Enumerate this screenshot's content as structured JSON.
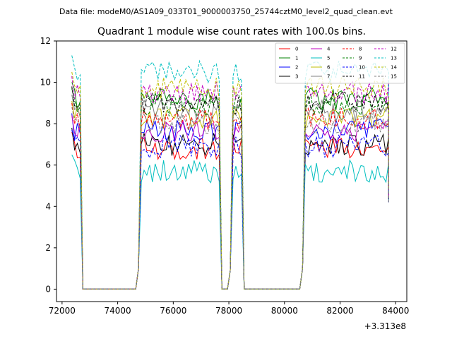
{
  "chart_data": {
    "type": "line",
    "suptitle": "Data file: modeM0/AS1A09_033T01_9000003750_25744cztM0_level2_quad_clean.evt",
    "title": "Quadrant 1 module wise count rates with 100.0s bins.",
    "xlabel": "",
    "ylabel": "",
    "x_offset_label": "+3.313e8",
    "xlim": [
      71800,
      84400
    ],
    "ylim": [
      -0.6,
      12.0
    ],
    "x_ticks": [
      72000,
      74000,
      76000,
      78000,
      80000,
      82000,
      84000
    ],
    "x_tick_labels": [
      "72000",
      "74000",
      "76000",
      "78000",
      "80000",
      "82000",
      "84000"
    ],
    "y_ticks": [
      0,
      2,
      4,
      6,
      8,
      10,
      12
    ],
    "y_tick_labels": [
      "0",
      "2",
      "4",
      "6",
      "8",
      "10",
      "12"
    ],
    "legend_position": "top-right",
    "segments": [
      {
        "start": 72350,
        "end": 72650,
        "drop_after": true
      },
      {
        "start": 74850,
        "end": 77650,
        "drop_after": true
      },
      {
        "start": 78150,
        "end": 78450,
        "drop_after": true
      },
      {
        "start": 80750,
        "end": 83750,
        "drop_after": false
      }
    ],
    "gaps": [
      [
        72750,
        74750
      ],
      [
        77750,
        78050
      ],
      [
        78550,
        80650
      ]
    ],
    "series": [
      {
        "name": "0",
        "color": "#ff0000",
        "style": "solid",
        "level": 6.8
      },
      {
        "name": "1",
        "color": "#008000",
        "style": "solid",
        "level": 9.2
      },
      {
        "name": "2",
        "color": "#0000ff",
        "style": "solid",
        "level": 7.7
      },
      {
        "name": "3",
        "color": "#000000",
        "style": "solid",
        "level": 7.0
      },
      {
        "name": "4",
        "color": "#bf00bf",
        "style": "solid",
        "level": 7.6
      },
      {
        "name": "5",
        "color": "#00bfbf",
        "style": "solid",
        "level": 5.7
      },
      {
        "name": "6",
        "color": "#bfbf00",
        "style": "solid",
        "level": 8.3
      },
      {
        "name": "7",
        "color": "#808080",
        "style": "solid",
        "level": 8.6
      },
      {
        "name": "8",
        "color": "#ff0000",
        "style": "dashed",
        "level": 8.2
      },
      {
        "name": "9",
        "color": "#008000",
        "style": "dashed",
        "level": 8.9
      },
      {
        "name": "10",
        "color": "#0000ff",
        "style": "dashed",
        "level": 6.9
      },
      {
        "name": "11",
        "color": "#000000",
        "style": "dashed",
        "level": 9.0
      },
      {
        "name": "12",
        "color": "#bf00bf",
        "style": "dashed",
        "level": 9.5
      },
      {
        "name": "13",
        "color": "#00bfbf",
        "style": "dashed",
        "level": 10.5
      },
      {
        "name": "14",
        "color": "#bfbf00",
        "style": "dashed",
        "level": 9.7
      },
      {
        "name": "15",
        "color": "#808080",
        "style": "dashed",
        "level": 8.0
      }
    ]
  }
}
